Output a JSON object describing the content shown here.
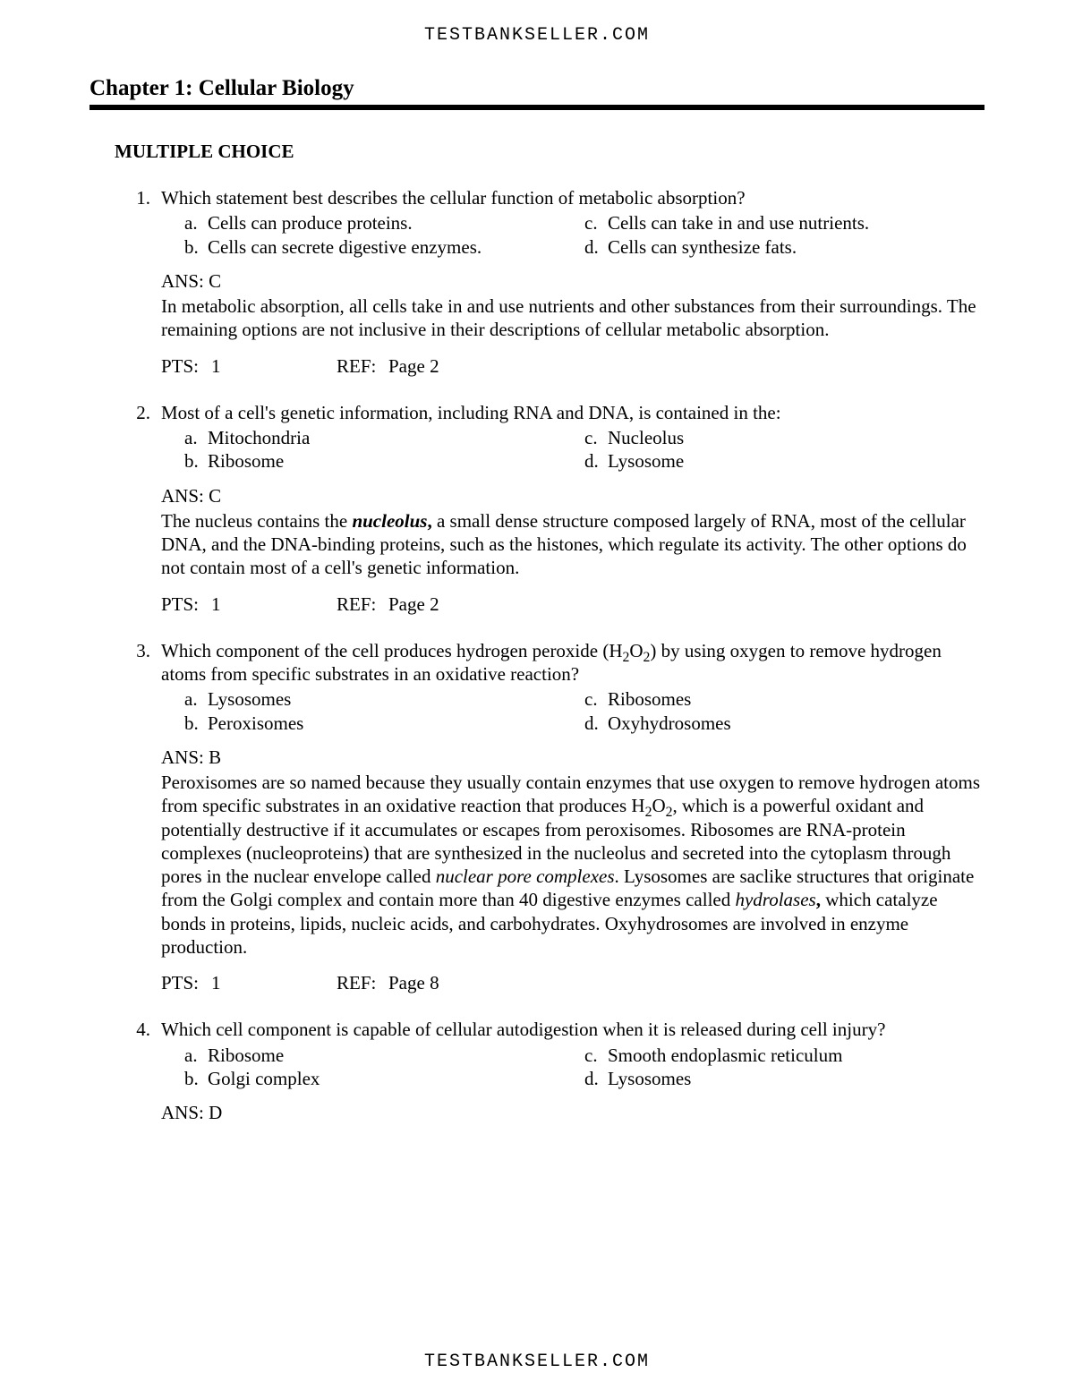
{
  "site_header": "TESTBANKSELLER.COM",
  "chapter_title": "Chapter 1: Cellular Biology",
  "section_title": "MULTIPLE CHOICE",
  "questions": [
    {
      "num": "1.",
      "stem": "Which statement best describes the cellular function of metabolic absorption?",
      "opts": {
        "a": "Cells can produce proteins.",
        "b": "Cells can secrete digestive enzymes.",
        "c": "Cells can take in and use nutrients.",
        "d": "Cells can synthesize fats."
      },
      "ans": "ANS:  C",
      "explain_html": "In metabolic absorption, all cells take in and use nutrients and other substances from their surroundings. The remaining options are not inclusive in their descriptions of cellular metabolic absorption.",
      "pts_label": "PTS:",
      "pts_val": "1",
      "ref_label": "REF:",
      "ref_val": "Page 2"
    },
    {
      "num": "2.",
      "stem": "Most of a cell's genetic information, including RNA and DNA, is contained in the:",
      "opts": {
        "a": "Mitochondria",
        "b": "Ribosome",
        "c": "Nucleolus",
        "d": "Lysosome"
      },
      "ans": "ANS:  C",
      "explain_html": "The nucleus contains the <span class=\"bi\">nucleolus</span><b>,</b> a small dense structure composed largely of RNA, most of the cellular DNA, and the DNA-binding proteins, such as the histones, which regulate its activity. The other options do not contain most of a cell's genetic information.",
      "pts_label": "PTS:",
      "pts_val": "1",
      "ref_label": "REF:",
      "ref_val": "Page 2"
    },
    {
      "num": "3.",
      "stem_html": "Which component of the cell produces hydrogen peroxide (H<sub>2</sub>O<sub>2</sub>) by using oxygen to remove hydrogen atoms from specific substrates in an oxidative reaction?",
      "opts": {
        "a": "Lysosomes",
        "b": "Peroxisomes",
        "c": "Ribosomes",
        "d": "Oxyhydrosomes"
      },
      "ans": "ANS:  B",
      "explain_html": "Peroxisomes are so named because they usually contain enzymes that use oxygen to remove hydrogen atoms from specific substrates in an oxidative reaction that produces H<sub>2</sub>O<sub>2</sub>, which is a powerful oxidant and potentially destructive if it accumulates or escapes from peroxisomes. Ribosomes are RNA-protein complexes (nucleoproteins) that are synthesized in the nucleolus and secreted into the cytoplasm through pores in the nuclear envelope called <span class=\"it\">nuclear pore complexes</span>. Lysosomes are saclike structures that originate from the Golgi complex and contain more than 40 digestive enzymes called <span class=\"it\">hydrolases</span><b>,</b> which catalyze bonds in proteins, lipids, nucleic acids, and carbohydrates. Oxyhydrosomes are involved in enzyme production.",
      "pts_label": "PTS:",
      "pts_val": "1",
      "ref_label": "REF:",
      "ref_val": "Page 8"
    },
    {
      "num": "4.",
      "stem": "Which cell component is capable of cellular autodigestion when it is released during cell injury?",
      "opts": {
        "a": "Ribosome",
        "b": "Golgi complex",
        "c": "Smooth endoplasmic reticulum",
        "d": "Lysosomes"
      },
      "ans": "ANS:  D"
    }
  ],
  "site_footer": "TESTBANKSELLER.COM"
}
